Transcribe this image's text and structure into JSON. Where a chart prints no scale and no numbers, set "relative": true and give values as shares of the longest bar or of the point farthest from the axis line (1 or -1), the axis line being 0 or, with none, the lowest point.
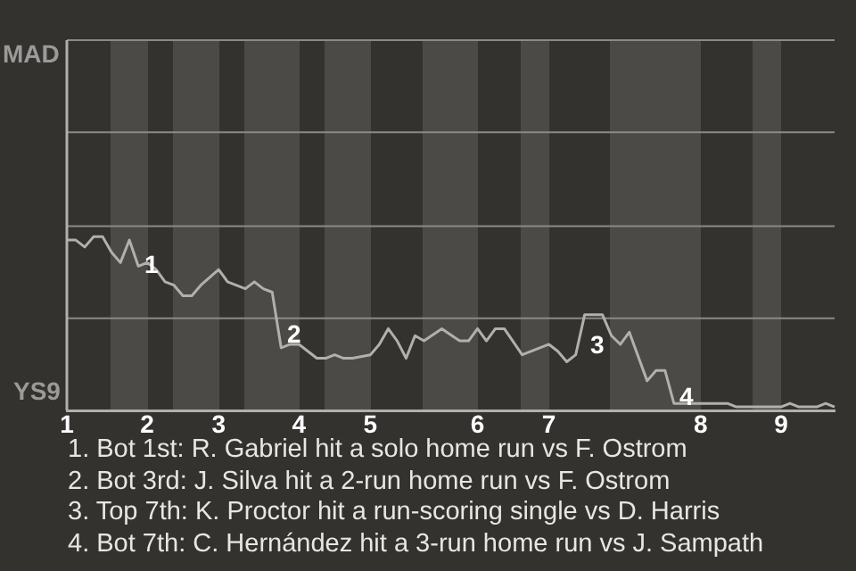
{
  "chart_data": {
    "type": "line",
    "relative": true,
    "categories": [
      "1",
      null,
      null,
      null,
      null,
      null,
      null,
      null,
      null,
      "2",
      null,
      null,
      null,
      null,
      null,
      null,
      null,
      "3",
      null,
      null,
      null,
      null,
      null,
      null,
      null,
      null,
      "4",
      null,
      null,
      null,
      null,
      null,
      null,
      null,
      "5",
      null,
      null,
      null,
      null,
      null,
      null,
      null,
      null,
      null,
      null,
      null,
      "6",
      null,
      null,
      null,
      null,
      null,
      null,
      null,
      "7",
      null,
      null,
      null,
      null,
      null,
      null,
      null,
      null,
      null,
      null,
      null,
      null,
      null,
      null,
      null,
      null,
      "8",
      null,
      null,
      null,
      null,
      null,
      null,
      null,
      null,
      "9",
      null,
      null,
      null,
      null,
      null,
      null
    ],
    "series": [
      {
        "color": "#b0b0ac",
        "values": [
          0.98,
          0.98,
          0.94,
          1,
          1,
          0.91,
          0.85,
          0.98,
          0.83,
          0.85,
          0.81,
          0.74,
          0.72,
          0.66,
          0.66,
          0.72,
          null,
          0.81,
          0.74,
          null,
          0.7,
          0.74,
          0.7,
          0.68,
          0.36,
          0.38,
          0.38,
          0.34,
          0.3,
          0.3,
          0.32,
          0.3,
          0.3,
          null,
          0.32,
          0.38,
          0.47,
          0.4,
          0.3,
          0.43,
          0.4,
          null,
          0.47,
          null,
          0.4,
          0.4,
          0.47,
          0.4,
          0.47,
          0.47,
          null,
          0.32,
          null,
          null,
          0.38,
          0.34,
          0.28,
          0.32,
          0.55,
          null,
          0.55,
          0.43,
          0.38,
          0.45,
          null,
          0.17,
          0.23,
          0.23,
          0.04,
          null,
          0.04,
          null,
          0.04,
          null,
          0.04,
          0.02,
          null,
          0.02,
          null,
          null,
          0.02,
          0.04,
          0.02,
          null,
          0.02,
          0.04,
          0.02
        ]
      }
    ],
    "ref_lines": [
      {
        "axis": "y",
        "value": 0.53,
        "color": "#8a8a88"
      },
      {
        "axis": "y",
        "value": 1.06,
        "color": "#8a8a88"
      },
      {
        "axis": "y",
        "value": 1.6,
        "color": "#8a8a88"
      },
      {
        "axis": "y",
        "value": 2.13,
        "color": "#8a8a88"
      }
    ],
    "legend": false,
    "marker": "none",
    "line_style": "solid",
    "annotations": [
      "MAD",
      "YS9",
      "1",
      "2",
      "3",
      "4",
      "1. Bot 1st: R. Gabriel hit a solo home run vs F. Ostrom",
      "2. Bot 3rd: J. Silva hit a 2-run home run vs F. Ostrom",
      "3. Top 7th: K. Proctor hit a run-scoring single vs D. Harris",
      "4. Bot 7th: C. Hernández hit a 3-run home run vs J. Sampath"
    ]
  }
}
